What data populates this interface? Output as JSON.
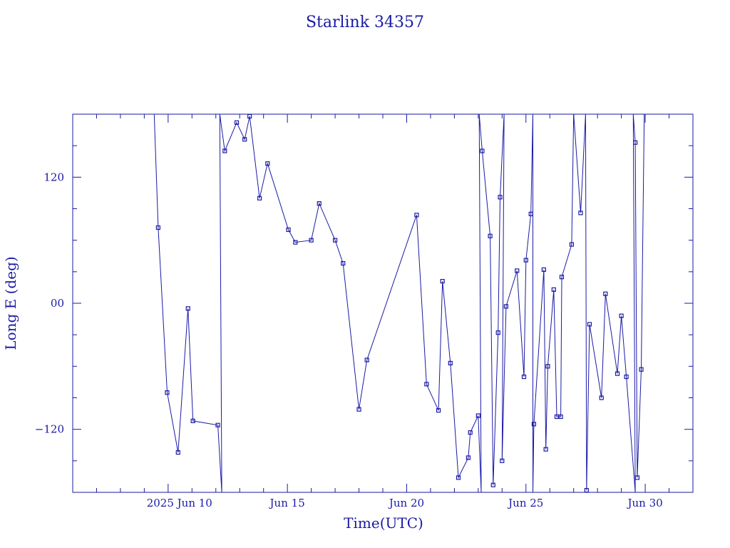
{
  "chart_data": {
    "type": "line",
    "title": "Starlink 34357",
    "xlabel": "Time(UTC)",
    "ylabel": "Long E (deg)",
    "x_range": [
      "2025-06-06",
      "2025-07-02"
    ],
    "ylim": [
      -180,
      180
    ],
    "y_ticks": [
      -120,
      0,
      120
    ],
    "y_tick_labels": [
      "−120",
      "00",
      "120"
    ],
    "x_tick_labels": [
      {
        "date": "2025-06-10",
        "label": "2025 Jun 10"
      },
      {
        "date": "2025-06-15",
        "label": "Jun 15"
      },
      {
        "date": "2025-06-20",
        "label": "Jun 20"
      },
      {
        "date": "2025-06-25",
        "label": "Jun 25"
      },
      {
        "date": "2025-06-30",
        "label": "Jun 30"
      }
    ],
    "colors": {
      "line": "#1a1aa6",
      "marker": "#1a1aa6",
      "frame": "#1a1aa6"
    },
    "series": [
      {
        "marker": "square",
        "points": [
          [
            "2025-06-09T10:00",
            180
          ],
          [
            "2025-06-09T14:00",
            72
          ],
          [
            "2025-06-09T23:00",
            -85
          ],
          [
            "2025-06-10T10:00",
            -142
          ],
          [
            "2025-06-10T20:00",
            -5
          ],
          [
            "2025-06-11T01:00",
            -112
          ],
          [
            "2025-06-12T02:00",
            -116
          ],
          [
            "2025-06-12T06:00",
            -180
          ],
          [
            "2025-06-12T04:00",
            180
          ],
          [
            "2025-06-12T09:00",
            145
          ],
          [
            "2025-06-12T21:00",
            172
          ],
          [
            "2025-06-13T05:00",
            156
          ],
          [
            "2025-06-13T10:00",
            178
          ],
          [
            "2025-06-13T20:00",
            100
          ],
          [
            "2025-06-14T04:00",
            133
          ],
          [
            "2025-06-15T01:00",
            70
          ],
          [
            "2025-06-15T08:00",
            58
          ],
          [
            "2025-06-16T00:00",
            60
          ],
          [
            "2025-06-16T08:00",
            95
          ],
          [
            "2025-06-17T00:00",
            60
          ],
          [
            "2025-06-17T08:00",
            38
          ],
          [
            "2025-06-18T00:00",
            -101
          ],
          [
            "2025-06-18T08:00",
            -54
          ],
          [
            "2025-06-20T10:00",
            84
          ],
          [
            "2025-06-20T20:00",
            -77
          ],
          [
            "2025-06-21T08:00",
            -102
          ],
          [
            "2025-06-21T12:00",
            21
          ],
          [
            "2025-06-21T20:00",
            -57
          ],
          [
            "2025-06-22T04:00",
            -166
          ],
          [
            "2025-06-22T14:00",
            -147
          ],
          [
            "2025-06-22T16:00",
            -123
          ],
          [
            "2025-06-23T00:00",
            -107
          ],
          [
            "2025-06-23T03:00",
            -180
          ],
          [
            "2025-06-23T01:00",
            180
          ],
          [
            "2025-06-23T04:00",
            145
          ],
          [
            "2025-06-23T12:00",
            64
          ],
          [
            "2025-06-23T15:00",
            -173
          ],
          [
            "2025-06-23T20:00",
            -28
          ],
          [
            "2025-06-23T22:00",
            101
          ],
          [
            "2025-06-24T02:00",
            180
          ],
          [
            "2025-06-24T00:00",
            -150
          ],
          [
            "2025-06-24T04:00",
            -3
          ],
          [
            "2025-06-24T15:00",
            31
          ],
          [
            "2025-06-24T22:00",
            -70
          ],
          [
            "2025-06-25T00:00",
            41
          ],
          [
            "2025-06-25T05:00",
            85
          ],
          [
            "2025-06-25T07:00",
            180
          ],
          [
            "2025-06-25T07:00",
            -180
          ],
          [
            "2025-06-25T08:00",
            -115
          ],
          [
            "2025-06-25T18:00",
            32
          ],
          [
            "2025-06-25T20:00",
            -139
          ],
          [
            "2025-06-25T22:00",
            -60
          ],
          [
            "2025-06-26T04:00",
            13
          ],
          [
            "2025-06-26T07:00",
            -108
          ],
          [
            "2025-06-26T11:00",
            -108
          ],
          [
            "2025-06-26T12:00",
            25
          ],
          [
            "2025-06-26T22:00",
            56
          ],
          [
            "2025-06-27T00:00",
            180
          ],
          [
            "2025-06-27T07:00",
            86
          ],
          [
            "2025-06-27T12:00",
            180
          ],
          [
            "2025-06-27T13:00",
            -178
          ],
          [
            "2025-06-27T16:00",
            -20
          ],
          [
            "2025-06-28T04:00",
            -90
          ],
          [
            "2025-06-28T08:00",
            9
          ],
          [
            "2025-06-28T20:00",
            -67
          ],
          [
            "2025-06-29T00:00",
            -12
          ],
          [
            "2025-06-29T05:00",
            -70
          ],
          [
            "2025-06-29T14:00",
            -180
          ],
          [
            "2025-06-29T12:00",
            180
          ],
          [
            "2025-06-29T14:00",
            153
          ],
          [
            "2025-06-29T16:00",
            -166
          ],
          [
            "2025-06-29T20:00",
            -63
          ],
          [
            "2025-06-29T23:00",
            180
          ]
        ]
      }
    ]
  }
}
